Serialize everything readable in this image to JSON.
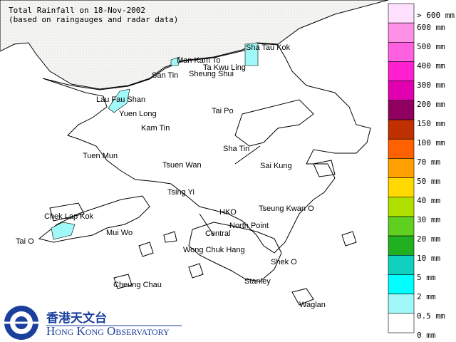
{
  "header": {
    "title": "Total Rainfall on 18-Nov-2002",
    "subtitle": "(based on raingauges and radar data)"
  },
  "places": [
    "Sha Tau Kok",
    "Man Kam To",
    "Ta Kwu Ling",
    "San Tin",
    "Sheung Shui",
    "Lau Fau Shan",
    "Yuen Long",
    "Tai Po",
    "Kam Tin",
    "Tuen Mun",
    "Sha Tin",
    "Tsuen Wan",
    "Sai Kung",
    "Tsing Yi",
    "Chek Lap Kok",
    "HKO",
    "Tseung Kwan O",
    "Mui Wo",
    "Tai O",
    "North Point",
    "Central",
    "Wong Chuk Hang",
    "Shek O",
    "Stanley",
    "Cheung Chau",
    "Waglan"
  ],
  "legend": {
    "colors": [
      "#ffe0ff",
      "#ff90e8",
      "#ff60e0",
      "#ff20d0",
      "#e000b0",
      "#900060",
      "#c03000",
      "#ff6000",
      "#ffa000",
      "#ffd800",
      "#b0e000",
      "#60d020",
      "#20b020",
      "#10d0c0",
      "#00ffff",
      "#a0f8f8",
      "#ffffff"
    ],
    "labels": [
      "> 600 mm",
      "600 mm",
      "500 mm",
      "400 mm",
      "300 mm",
      "200 mm",
      "150 mm",
      "100 mm",
      "70 mm",
      "50 mm",
      "40 mm",
      "30 mm",
      "20 mm",
      "10 mm",
      "5 mm",
      "2 mm",
      "0.5 mm",
      "0 mm"
    ]
  },
  "logo": {
    "chinese": "香港天文台",
    "english": "Hong Kong Observatory"
  }
}
